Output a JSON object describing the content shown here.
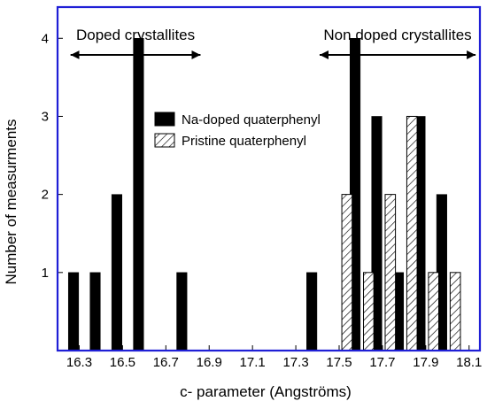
{
  "chart_data": {
    "type": "bar",
    "title": "",
    "xlabel": "c- parameter (Angströms)",
    "ylabel": "Number of measurments",
    "xlim": [
      16.2,
      18.15
    ],
    "ylim": [
      0,
      4.4
    ],
    "xticks": [
      "16.3",
      "16.5",
      "16.7",
      "16.9",
      "17.1",
      "17.3",
      "17.5",
      "17.7",
      "17.9",
      "18.1"
    ],
    "yticks": [
      "1",
      "2",
      "3",
      "4"
    ],
    "grid": false,
    "legend_position": "center-right",
    "bin_width": 0.05,
    "series": [
      {
        "name": "Na-doped quaterphenyl",
        "color": "#000000",
        "fill": "solid",
        "x": [
          16.3,
          16.4,
          16.5,
          16.6,
          16.8,
          17.4,
          17.6,
          17.7,
          17.8,
          17.9,
          18.0
        ],
        "values": [
          1,
          1,
          2,
          4,
          1,
          1,
          4,
          3,
          1,
          3,
          2
        ]
      },
      {
        "name": "Pristine quaterphenyl",
        "color": "#ffffff",
        "fill": "hatched",
        "x": [
          17.6,
          17.7,
          17.8,
          17.9,
          18.0,
          18.1
        ],
        "values": [
          2,
          1,
          2,
          3,
          1,
          1
        ]
      }
    ],
    "annotations": [
      {
        "text": "Doped crystallites",
        "arrow_from": 16.26,
        "arrow_to": 16.86
      },
      {
        "text": "Non doped crystallites",
        "arrow_from": 17.41,
        "arrow_to": 18.13
      }
    ]
  }
}
